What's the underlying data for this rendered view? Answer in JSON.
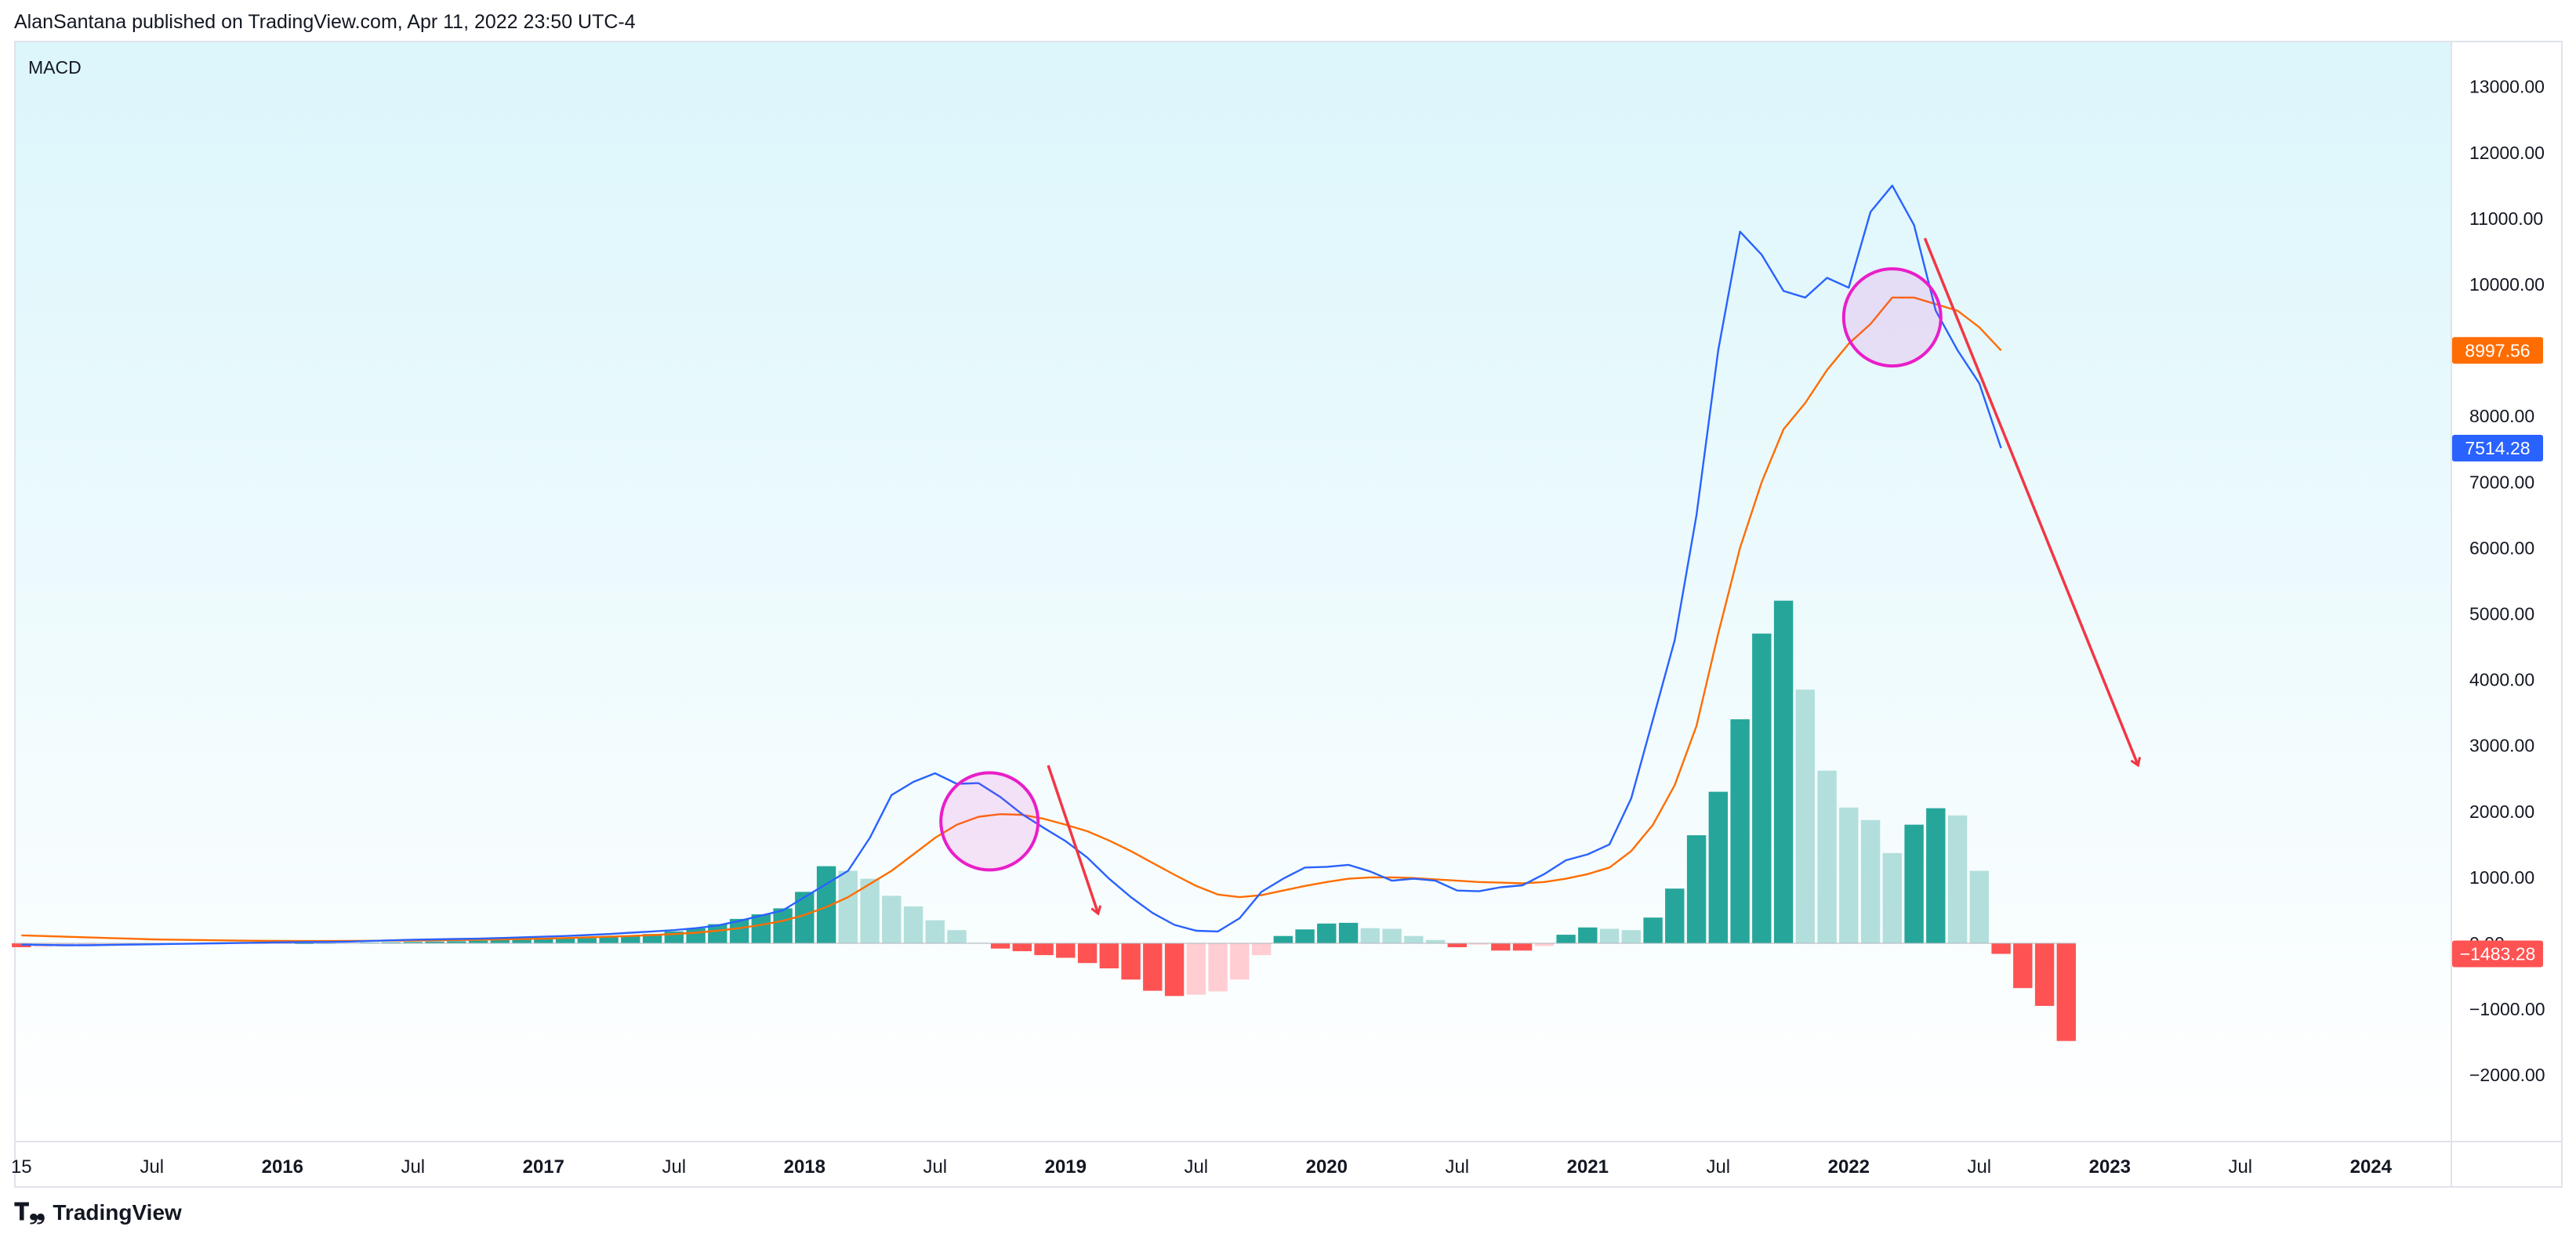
{
  "header": {
    "publisher_line": "AlanSantana published on TradingView.com, Apr 11, 2022 23:50 UTC-4"
  },
  "footer": {
    "brand": "TradingView",
    "logo_icon": "tradingview-logo-icon"
  },
  "chart_data": {
    "type": "bar",
    "indicator_label": "MACD",
    "y_ticks": [
      "13000.00",
      "12000.00",
      "11000.00",
      "10000.00",
      "9000.00",
      "8000.00",
      "7000.00",
      "6000.00",
      "5000.00",
      "4000.00",
      "3000.00",
      "2000.00",
      "1000.00",
      "0.00",
      "−1000.00",
      "−2000.00"
    ],
    "y_tick_values": [
      13000,
      12000,
      11000,
      10000,
      9000,
      8000,
      7000,
      6000,
      5000,
      4000,
      3000,
      2000,
      1000,
      0,
      -1000,
      -2000
    ],
    "ylim": [
      -2500,
      13500
    ],
    "x_ticks": [
      {
        "label": "15",
        "month": 0
      },
      {
        "label": "Jul",
        "month": 6
      },
      {
        "label": "2016",
        "month": 12
      },
      {
        "label": "Jul",
        "month": 18
      },
      {
        "label": "2017",
        "month": 24
      },
      {
        "label": "Jul",
        "month": 30
      },
      {
        "label": "2018",
        "month": 36
      },
      {
        "label": "Jul",
        "month": 42
      },
      {
        "label": "2019",
        "month": 48
      },
      {
        "label": "Jul",
        "month": 54
      },
      {
        "label": "2020",
        "month": 60
      },
      {
        "label": "Jul",
        "month": 66
      },
      {
        "label": "2021",
        "month": 72
      },
      {
        "label": "Jul",
        "month": 78
      },
      {
        "label": "2022",
        "month": 84
      },
      {
        "label": "Jul",
        "month": 90
      },
      {
        "label": "2023",
        "month": 96
      },
      {
        "label": "Jul",
        "month": 102
      },
      {
        "label": "2024",
        "month": 108
      }
    ],
    "x_domain": [
      -0.3,
      111.7
    ],
    "x_axis_note": "month index 0 = Jan 2015",
    "macd_line": [
      -20,
      -25,
      -30,
      -30,
      -25,
      -20,
      -15,
      -10,
      -5,
      0,
      5,
      10,
      15,
      18,
      20,
      25,
      35,
      45,
      55,
      60,
      65,
      70,
      80,
      90,
      100,
      110,
      125,
      140,
      160,
      180,
      200,
      230,
      270,
      340,
      420,
      500,
      700,
      900,
      1100,
      1600,
      2250,
      2450,
      2580,
      2420,
      2430,
      2220,
      1960,
      1750,
      1550,
      1300,
      980,
      700,
      460,
      280,
      190,
      180,
      380,
      780,
      980,
      1150,
      1160,
      1190,
      1090,
      950,
      980,
      950,
      800,
      790,
      850,
      880,
      1050,
      1260,
      1350,
      1500,
      2200,
      3400,
      4600,
      6500,
      9000,
      10800,
      10450,
      9900,
      9800,
      10100,
      9950,
      11100,
      11500,
      10900,
      9600,
      9000,
      8500,
      7514.28
    ],
    "signal_line": [
      120,
      110,
      100,
      90,
      80,
      70,
      60,
      55,
      50,
      45,
      40,
      38,
      36,
      35,
      35,
      36,
      38,
      40,
      42,
      45,
      50,
      55,
      60,
      65,
      70,
      80,
      90,
      100,
      110,
      125,
      140,
      160,
      190,
      230,
      280,
      340,
      430,
      550,
      700,
      900,
      1100,
      1350,
      1600,
      1800,
      1920,
      1960,
      1950,
      1890,
      1800,
      1700,
      1560,
      1400,
      1220,
      1040,
      870,
      740,
      700,
      730,
      800,
      870,
      930,
      980,
      1000,
      1000,
      990,
      970,
      950,
      930,
      920,
      910,
      930,
      980,
      1050,
      1150,
      1400,
      1800,
      2400,
      3300,
      4700,
      6000,
      7000,
      7800,
      8200,
      8700,
      9100,
      9400,
      9800,
      9800,
      9700,
      9600,
      9350,
      8997.56
    ],
    "histogram": [
      -60,
      -55,
      -50,
      -45,
      -40,
      -35,
      -30,
      -25,
      -20,
      -15,
      -10,
      -5,
      -3,
      0,
      4,
      6,
      10,
      14,
      20,
      26,
      32,
      40,
      48,
      56,
      64,
      72,
      80,
      90,
      110,
      140,
      180,
      230,
      290,
      370,
      440,
      530,
      780,
      1170,
      1100,
      980,
      720,
      560,
      350,
      200,
      10,
      -80,
      -120,
      -180,
      -220,
      -300,
      -380,
      -550,
      -720,
      -800,
      -780,
      -730,
      -550,
      -180,
      110,
      210,
      300,
      310,
      230,
      220,
      110,
      50,
      -60,
      -20,
      -110,
      -110,
      -40,
      130,
      240,
      220,
      200,
      390,
      830,
      1640,
      2300,
      3400,
      4700,
      5200,
      3850,
      2620,
      2060,
      1870,
      1370,
      1800,
      2050,
      1940,
      1100,
      -160,
      -680,
      -950,
      -1483.28
    ],
    "last_values": {
      "signal": "8997.56",
      "macd": "7514.28",
      "histogram": "−1483.28"
    },
    "colors": {
      "macd": "#2962ff",
      "signal": "#ff6d00",
      "hist_pos_rising": "#26a69a",
      "hist_pos_falling": "#b2dfdb",
      "hist_neg_falling": "#ff5252",
      "hist_neg_rising": "#ffcdd2",
      "annotation_circle": "#e91ec9",
      "annotation_arrow": "#f23645",
      "bg_top": "#dcf6fb",
      "bg_bottom": "#ffffff"
    },
    "annotations": [
      {
        "kind": "circle",
        "month": 44.5,
        "value": 1850
      },
      {
        "kind": "circle",
        "month": 86,
        "value": 9500
      },
      {
        "kind": "arrow",
        "from": [
          47.2,
          2700
        ],
        "to": [
          49.5,
          450
        ]
      },
      {
        "kind": "arrow",
        "from": [
          87.5,
          10700
        ],
        "to": [
          97.3,
          2700
        ]
      }
    ],
    "grid": false,
    "legend": "none"
  }
}
